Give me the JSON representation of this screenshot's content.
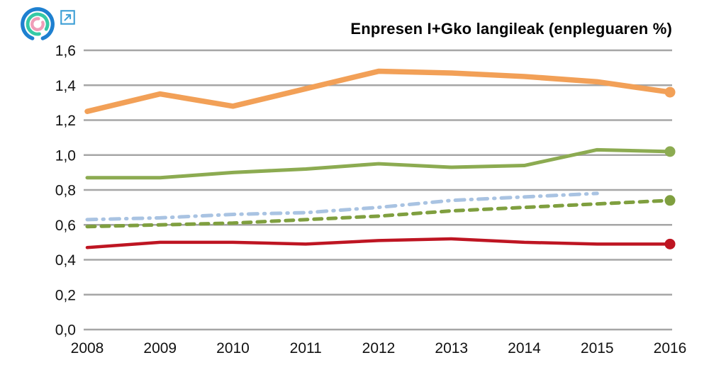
{
  "header": {
    "title": "Enpresen I+Gko langileak (enpleguaren %)",
    "logo_icon": "concentric-arcs-logo",
    "logo_colors": {
      "outer": "#1E80D0",
      "middle": "#35C9A5",
      "inner": "#EF9DB8"
    },
    "external_link_icon": "arrow-up-right-in-square",
    "external_link_color": "#3D9FD6"
  },
  "chart_data": {
    "type": "line",
    "title": "Enpresen I+Gko langileak (enpleguaren %)",
    "categories": [
      "2008",
      "2009",
      "2010",
      "2011",
      "2012",
      "2013",
      "2014",
      "2015",
      "2016"
    ],
    "ylim": [
      0,
      1.6
    ],
    "ytick_step": 0.2,
    "ytick_labels": [
      "0,0",
      "0,2",
      "0,4",
      "0,6",
      "0,8",
      "1,0",
      "1,2",
      "1,4",
      "1,6"
    ],
    "decimal_separator": ",",
    "grid": true,
    "legend_position": "none",
    "axis_color": "#A6A6A6",
    "text_color": "#111111",
    "series": [
      {
        "name": "orange-solid",
        "color": "#F2A057",
        "style": "solid",
        "width": 7.5,
        "end_marker": true,
        "values": [
          1.25,
          1.35,
          1.28,
          1.38,
          1.48,
          1.47,
          1.45,
          1.42,
          1.36
        ]
      },
      {
        "name": "green-solid",
        "color": "#8CAB51",
        "style": "solid",
        "width": 5,
        "end_marker": true,
        "values": [
          0.87,
          0.87,
          0.9,
          0.92,
          0.95,
          0.93,
          0.94,
          1.03,
          1.02
        ]
      },
      {
        "name": "blue-dash-dot",
        "color": "#A9C3E2",
        "style": "dash-dot",
        "width": 5,
        "end_marker": false,
        "values": [
          0.63,
          0.64,
          0.66,
          0.67,
          0.7,
          0.74,
          0.76,
          0.78,
          null
        ]
      },
      {
        "name": "green-dashed",
        "color": "#7F9F3F",
        "style": "dashed",
        "width": 5,
        "end_marker": true,
        "values": [
          0.59,
          0.6,
          0.61,
          0.63,
          0.65,
          0.68,
          0.7,
          0.72,
          0.74
        ]
      },
      {
        "name": "red-solid",
        "color": "#BE1522",
        "style": "solid",
        "width": 4.5,
        "end_marker": true,
        "values": [
          0.47,
          0.5,
          0.5,
          0.49,
          0.51,
          0.52,
          0.5,
          0.49,
          0.49
        ]
      }
    ]
  }
}
